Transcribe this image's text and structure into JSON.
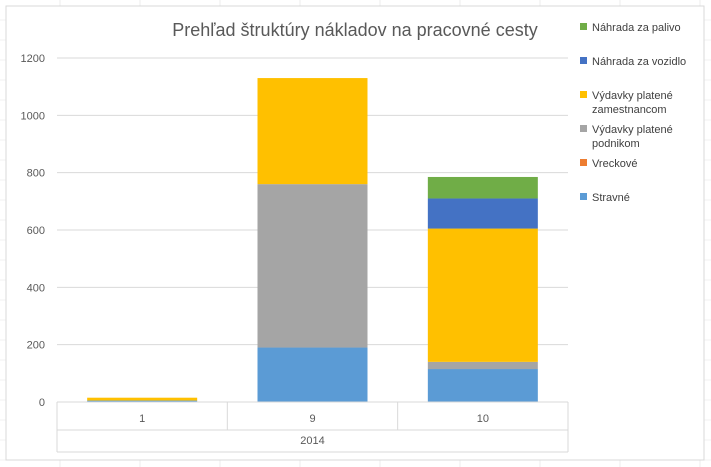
{
  "chart_data": {
    "type": "bar",
    "stacked": true,
    "title": "Prehľad štruktúry nákladov na pracovné cesty",
    "categories": [
      "1",
      "9",
      "10"
    ],
    "category_group": "2014",
    "ylim": [
      0,
      1200
    ],
    "yticks": [
      "0",
      "200",
      "400",
      "600",
      "800",
      "1000",
      "1200"
    ],
    "grid": true,
    "legend_position": "right",
    "series": [
      {
        "name": "Stravné",
        "color": "#5B9BD5",
        "values": [
          5,
          190,
          115
        ]
      },
      {
        "name": "Vreckové",
        "color": "#ED7D31",
        "values": [
          0,
          0,
          0
        ]
      },
      {
        "name": "Výdavky platené podnikom",
        "color": "#A5A5A5",
        "values": [
          0,
          570,
          25
        ]
      },
      {
        "name": "Výdavky platené zamestnancom",
        "color": "#FFC000",
        "values": [
          10,
          370,
          465
        ]
      },
      {
        "name": "Náhrada za vozidlo",
        "color": "#4472C4",
        "values": [
          0,
          0,
          105
        ]
      },
      {
        "name": "Náhrada za palivo",
        "color": "#70AD47",
        "values": [
          0,
          0,
          75
        ]
      }
    ],
    "legend": [
      {
        "label_lines": [
          "Náhrada za palivo"
        ],
        "color": "#70AD47"
      },
      {
        "label_lines": [
          "Náhrada za vozidlo"
        ],
        "color": "#4472C4"
      },
      {
        "label_lines": [
          "Výdavky platené",
          "zamestnancom"
        ],
        "color": "#FFC000"
      },
      {
        "label_lines": [
          "Výdavky platené",
          "podnikom"
        ],
        "color": "#A5A5A5"
      },
      {
        "label_lines": [
          "Vreckové"
        ],
        "color": "#ED7D31"
      },
      {
        "label_lines": [
          "Stravné"
        ],
        "color": "#5B9BD5"
      }
    ]
  }
}
